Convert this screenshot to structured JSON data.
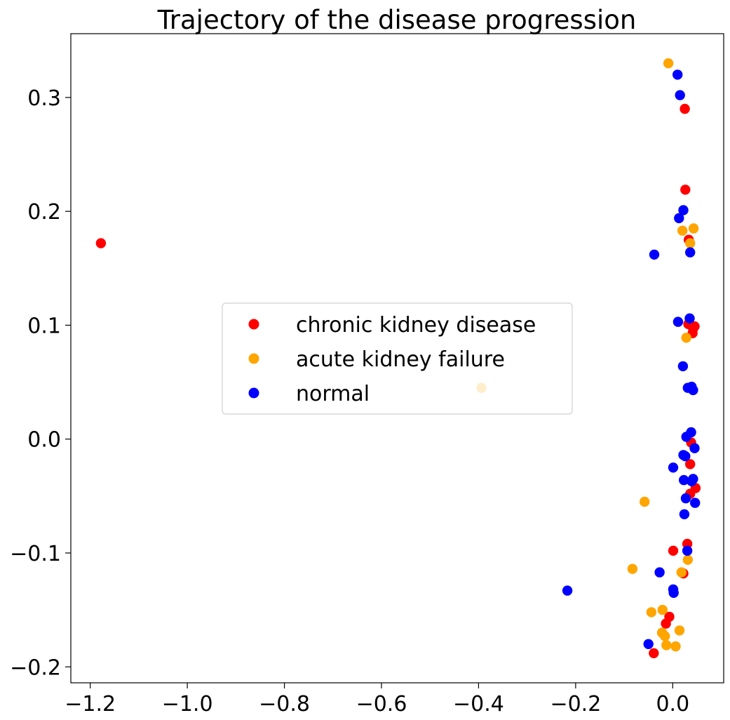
{
  "chart_data": {
    "type": "scatter",
    "title": "Trajectory of the disease progression",
    "xlabel": "",
    "ylabel": "",
    "xlim": [
      -1.24,
      0.105
    ],
    "ylim": [
      -0.214,
      0.356
    ],
    "xticks": [
      {
        "value": -1.2,
        "label": "−1.2"
      },
      {
        "value": -1.0,
        "label": "−1.0"
      },
      {
        "value": -0.8,
        "label": "−0.8"
      },
      {
        "value": -0.6,
        "label": "−0.6"
      },
      {
        "value": -0.4,
        "label": "−0.4"
      },
      {
        "value": -0.2,
        "label": "−0.2"
      },
      {
        "value": 0.0,
        "label": "0.0"
      }
    ],
    "yticks": [
      {
        "value": -0.2,
        "label": "−0.2"
      },
      {
        "value": -0.1,
        "label": "−0.1"
      },
      {
        "value": 0.0,
        "label": "0.0"
      },
      {
        "value": 0.1,
        "label": "0.1"
      },
      {
        "value": 0.2,
        "label": "0.2"
      },
      {
        "value": 0.3,
        "label": "0.3"
      }
    ],
    "grid": false,
    "legend_position": "center",
    "series": [
      {
        "name": "chronic kidney disease",
        "color": "#ff0000",
        "points": [
          [
            -1.178,
            0.172
          ],
          [
            0.025,
            0.29
          ],
          [
            0.026,
            0.219
          ],
          [
            0.033,
            0.175
          ],
          [
            0.032,
            0.101
          ],
          [
            0.042,
            0.097
          ],
          [
            0.045,
            0.099
          ],
          [
            0.041,
            0.093
          ],
          [
            0.038,
            -0.003
          ],
          [
            0.036,
            -0.022
          ],
          [
            0.047,
            -0.043
          ],
          [
            0.036,
            -0.048
          ],
          [
            0.03,
            -0.092
          ],
          [
            0.001,
            -0.098
          ],
          [
            0.022,
            -0.118
          ],
          [
            -0.007,
            -0.156
          ],
          [
            -0.014,
            -0.162
          ],
          [
            -0.039,
            -0.188
          ]
        ]
      },
      {
        "name": "acute kidney failure",
        "color": "#ffa500",
        "points": [
          [
            -0.009,
            0.33
          ],
          [
            0.02,
            0.183
          ],
          [
            0.043,
            0.185
          ],
          [
            0.036,
            0.172
          ],
          [
            0.028,
            0.089
          ],
          [
            -0.394,
            0.045
          ],
          [
            -0.058,
            -0.055
          ],
          [
            -0.083,
            -0.114
          ],
          [
            0.031,
            -0.106
          ],
          [
            0.018,
            -0.117
          ],
          [
            -0.021,
            -0.15
          ],
          [
            -0.044,
            -0.152
          ],
          [
            0.014,
            -0.168
          ],
          [
            -0.022,
            -0.17
          ],
          [
            -0.016,
            -0.173
          ],
          [
            -0.013,
            -0.181
          ],
          [
            0.006,
            -0.182
          ]
        ]
      },
      {
        "name": "normal",
        "color": "#0000ff",
        "points": [
          [
            0.01,
            0.32
          ],
          [
            0.015,
            0.302
          ],
          [
            0.022,
            0.201
          ],
          [
            0.013,
            0.194
          ],
          [
            0.036,
            0.164
          ],
          [
            -0.038,
            0.162
          ],
          [
            0.035,
            0.106
          ],
          [
            0.011,
            0.103
          ],
          [
            0.021,
            0.064
          ],
          [
            0.031,
            0.045
          ],
          [
            0.039,
            0.046
          ],
          [
            0.042,
            0.043
          ],
          [
            0.038,
            0.006
          ],
          [
            0.028,
            0.002
          ],
          [
            0.045,
            -0.008
          ],
          [
            0.022,
            -0.014
          ],
          [
            0.026,
            -0.015
          ],
          [
            0.001,
            -0.025
          ],
          [
            0.023,
            -0.036
          ],
          [
            0.042,
            -0.035
          ],
          [
            0.039,
            -0.037
          ],
          [
            0.027,
            -0.052
          ],
          [
            0.046,
            -0.056
          ],
          [
            0.024,
            -0.066
          ],
          [
            0.03,
            -0.098
          ],
          [
            -0.027,
            -0.117
          ],
          [
            0.001,
            -0.132
          ],
          [
            0.002,
            -0.135
          ],
          [
            -0.217,
            -0.133
          ],
          [
            -0.05,
            -0.18
          ]
        ]
      }
    ]
  }
}
